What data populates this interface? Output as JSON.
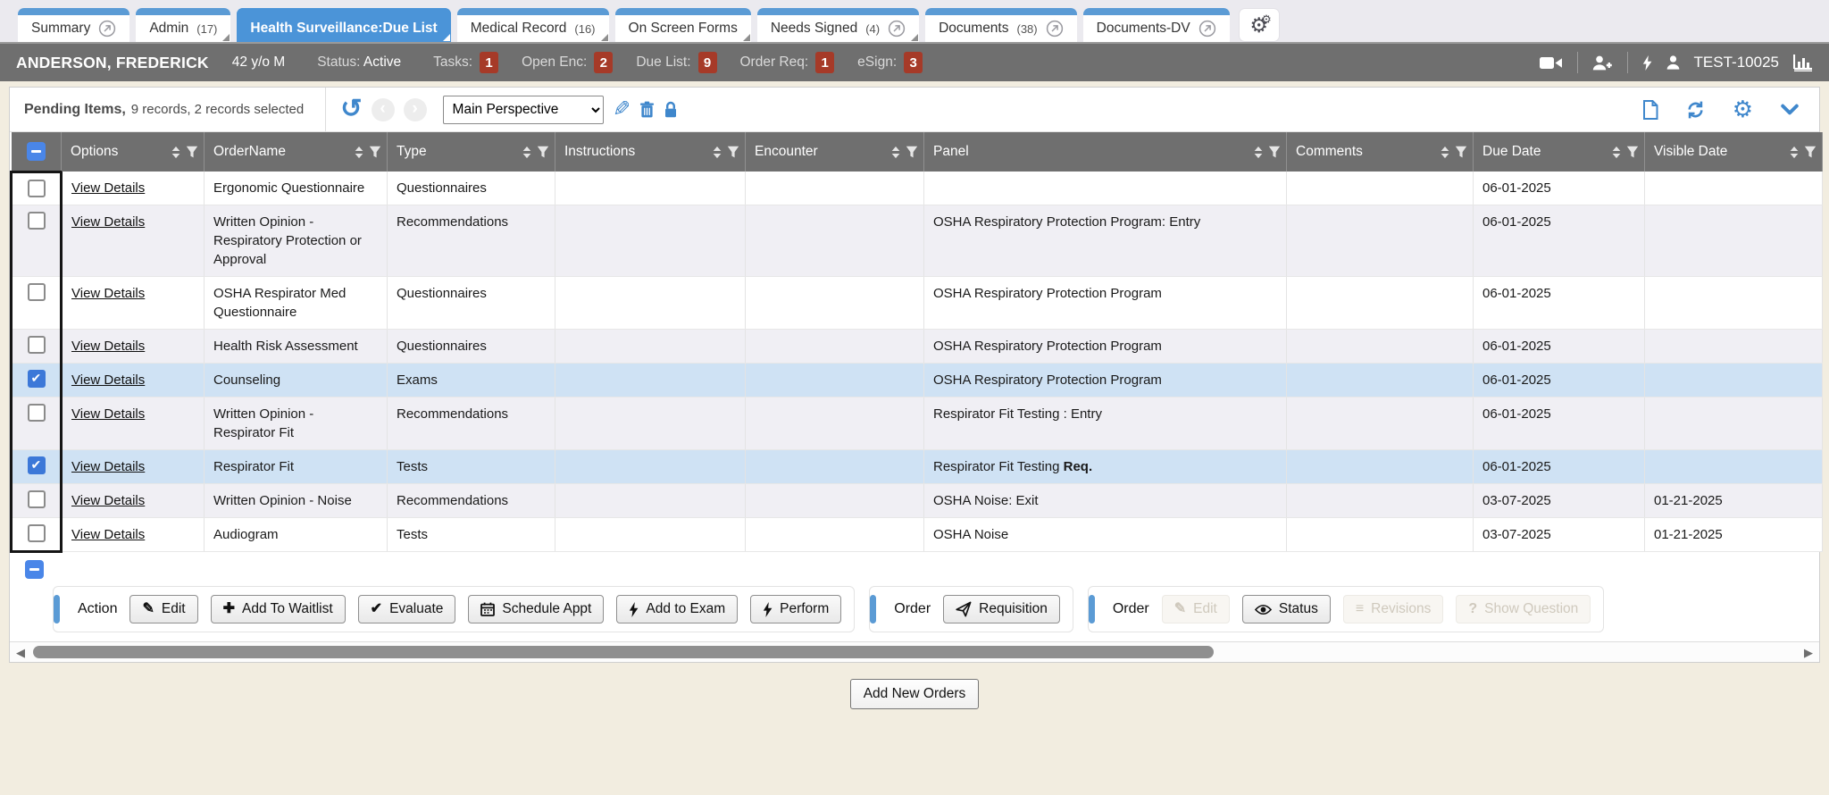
{
  "colors": {
    "accent": "#3f87cc",
    "tab_strip": "#5b9bd5",
    "active_tab": "#4b94d8",
    "badge_red": "#a63a28",
    "header_gray": "#6f6f6f",
    "selected_row": "#cfe2f4",
    "alt_row": "#f0eff4",
    "page_beige": "#f2ede0"
  },
  "tabs": [
    {
      "label": "Summary",
      "count": "",
      "active": false,
      "fold": false,
      "external": true
    },
    {
      "label": "Admin",
      "count": "(17)",
      "active": false,
      "fold": true,
      "external": false
    },
    {
      "label": "Health Surveillance:Due List",
      "count": "",
      "active": true,
      "fold": true,
      "external": false
    },
    {
      "label": "Medical Record",
      "count": "(16)",
      "active": false,
      "fold": true,
      "external": false
    },
    {
      "label": "On Screen Forms",
      "count": "",
      "active": false,
      "fold": true,
      "external": false
    },
    {
      "label": "Needs Signed",
      "count": "(4)",
      "active": false,
      "fold": true,
      "external": true
    },
    {
      "label": "Documents",
      "count": "(38)",
      "active": false,
      "fold": false,
      "external": true
    },
    {
      "label": "Documents-DV",
      "count": "",
      "active": false,
      "fold": false,
      "external": true
    }
  ],
  "settings_tab_icon": "gears-icon",
  "banner": {
    "patient_name": "ANDERSON, FREDERICK",
    "age_sex": "42 y/o M",
    "status_label": "Status:",
    "status_value": "Active",
    "counters": [
      {
        "label": "Tasks:",
        "value": "1"
      },
      {
        "label": "Open Enc:",
        "value": "2"
      },
      {
        "label": "Due List:",
        "value": "9"
      },
      {
        "label": "Order Req:",
        "value": "1"
      },
      {
        "label": "eSign:",
        "value": "3"
      }
    ],
    "right_icons": [
      "video-camera-icon",
      "add-person-icon",
      "lightning-icon",
      "user-icon"
    ],
    "user_id": "TEST-10025",
    "trailing_icon": "bar-chart-icon"
  },
  "toolbar": {
    "title": "Pending Items,",
    "subtitle": "9 records, 2 records selected",
    "left_icons": [
      "undo-icon",
      "chevron-left-icon",
      "chevron-right-icon"
    ],
    "perspective_value": "Main Perspective",
    "edit_icons": [
      "pencil-icon",
      "trash-icon",
      "lock-icon"
    ],
    "right_icons": [
      "new-document-icon",
      "refresh-icon",
      "gear-icon",
      "chevron-down-icon"
    ]
  },
  "table": {
    "columns": [
      "Options",
      "OrderName",
      "Type",
      "Instructions",
      "Encounter",
      "Panel",
      "Comments",
      "Due Date",
      "Visible Date"
    ],
    "link_label": "View Details",
    "rows": [
      {
        "checked": false,
        "order_name": "Ergonomic Questionnaire",
        "type": "Questionnaires",
        "instructions": "",
        "encounter": "",
        "panel": "",
        "panel_bold": "",
        "comments": "",
        "due_date": "06-01-2025",
        "visible_date": ""
      },
      {
        "checked": false,
        "order_name": "Written Opinion - Respiratory Protection or Approval",
        "type": "Recommendations",
        "instructions": "",
        "encounter": "",
        "panel": "OSHA Respiratory Protection Program: Entry",
        "panel_bold": "",
        "comments": "",
        "due_date": "06-01-2025",
        "visible_date": ""
      },
      {
        "checked": false,
        "order_name": "OSHA Respirator Med Questionnaire",
        "type": "Questionnaires",
        "instructions": "",
        "encounter": "",
        "panel": "OSHA Respiratory Protection Program",
        "panel_bold": "",
        "comments": "",
        "due_date": "06-01-2025",
        "visible_date": ""
      },
      {
        "checked": false,
        "order_name": "Health Risk Assessment",
        "type": "Questionnaires",
        "instructions": "",
        "encounter": "",
        "panel": "OSHA Respiratory Protection Program",
        "panel_bold": "",
        "comments": "",
        "due_date": "06-01-2025",
        "visible_date": ""
      },
      {
        "checked": true,
        "order_name": "Counseling",
        "type": "Exams",
        "instructions": "",
        "encounter": "",
        "panel": "OSHA Respiratory Protection Program",
        "panel_bold": "",
        "comments": "",
        "due_date": "06-01-2025",
        "visible_date": ""
      },
      {
        "checked": false,
        "order_name": "Written Opinion - Respirator Fit",
        "type": "Recommendations",
        "instructions": "",
        "encounter": "",
        "panel": "Respirator Fit Testing : Entry",
        "panel_bold": "",
        "comments": "",
        "due_date": "06-01-2025",
        "visible_date": ""
      },
      {
        "checked": true,
        "order_name": "Respirator Fit",
        "type": "Tests",
        "instructions": "",
        "encounter": "",
        "panel": "Respirator Fit Testing ",
        "panel_bold": "Req.",
        "comments": "",
        "due_date": "06-01-2025",
        "visible_date": ""
      },
      {
        "checked": false,
        "order_name": "Written Opinion - Noise",
        "type": "Recommendations",
        "instructions": "",
        "encounter": "",
        "panel": "OSHA Noise: Exit",
        "panel_bold": "",
        "comments": "",
        "due_date": "03-07-2025",
        "visible_date": "01-21-2025"
      },
      {
        "checked": false,
        "order_name": "Audiogram",
        "type": "Tests",
        "instructions": "",
        "encounter": "",
        "panel": "OSHA Noise",
        "panel_bold": "",
        "comments": "",
        "due_date": "03-07-2025",
        "visible_date": "01-21-2025"
      }
    ]
  },
  "action_bar": {
    "groups": [
      {
        "label": "Action",
        "buttons": [
          {
            "icon": "pencil-icon",
            "label": "Edit",
            "disabled": false
          },
          {
            "icon": "plus-icon",
            "label": "Add To Waitlist",
            "disabled": false
          },
          {
            "icon": "check-icon",
            "label": "Evaluate",
            "disabled": false
          },
          {
            "icon": "calendar-icon",
            "label": "Schedule Appt",
            "disabled": false
          },
          {
            "icon": "lightning-icon",
            "label": "Add to Exam",
            "disabled": false
          },
          {
            "icon": "lightning-icon",
            "label": "Perform",
            "disabled": false
          }
        ]
      },
      {
        "label": "Order",
        "buttons": [
          {
            "icon": "send-icon",
            "label": "Requisition",
            "disabled": false
          }
        ]
      },
      {
        "label": "Order",
        "buttons": [
          {
            "icon": "pencil-icon",
            "label": "Edit",
            "disabled": true
          },
          {
            "icon": "eye-icon",
            "label": "Status",
            "disabled": false
          },
          {
            "icon": "menu-lines-icon",
            "label": "Revisions",
            "disabled": true
          },
          {
            "icon": "question-icon",
            "label": "Show Question",
            "disabled": true
          }
        ]
      }
    ]
  },
  "footer": {
    "add_new_orders_label": "Add New Orders"
  }
}
